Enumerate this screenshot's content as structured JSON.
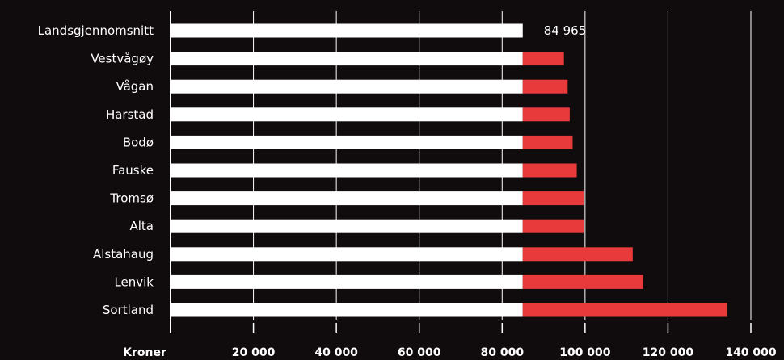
{
  "chart_data": {
    "type": "bar",
    "orientation": "horizontal",
    "stacked": true,
    "categories": [
      "Landsgjennomsnitt",
      "Vestvågøy",
      "Vågan",
      "Harstad",
      "Bodø",
      "Fauske",
      "Tromsø",
      "Alta",
      "Alstahaug",
      "Lenvik",
      "Sortland"
    ],
    "values": [
      84965,
      94900,
      95800,
      96300,
      97000,
      98000,
      99700,
      99700,
      111500,
      114000,
      134300
    ],
    "baseline_value": 84965,
    "value_labels": [
      "84 965",
      "",
      "",
      "",
      "",
      "",
      "",
      "",
      "",
      "",
      ""
    ],
    "xlabel": "Kroner",
    "xlim": [
      0,
      140000
    ],
    "xticks": [
      20000,
      40000,
      60000,
      80000,
      100000,
      120000,
      140000
    ],
    "xtick_labels": [
      "20 000",
      "40 000",
      "60 000",
      "80 000",
      "100 000",
      "120 000",
      "140 000"
    ],
    "grid": true,
    "colors": {
      "background": "#100c0d",
      "baseline_bar": "#ffffff",
      "excess_bar": "#e83a3b",
      "gridline": "#ffffff",
      "text": "#ffffff"
    }
  }
}
